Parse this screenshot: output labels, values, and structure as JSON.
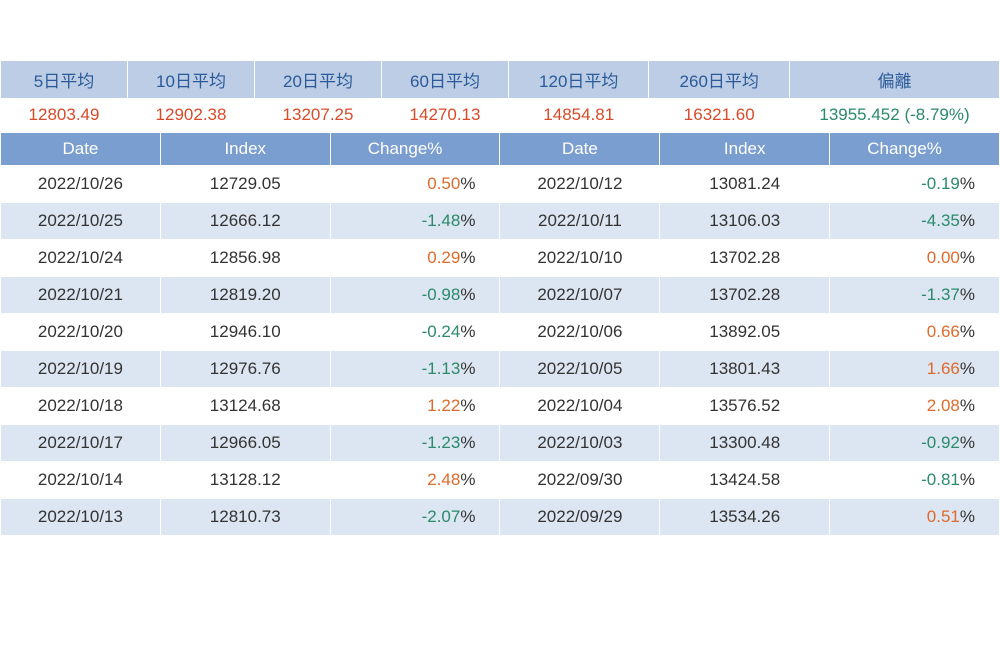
{
  "colors": {
    "avg_header_bg": "#bccde5",
    "avg_header_text": "#2a5a9a",
    "avg_value_text": "#d84a2a",
    "deviation_text": "#2a8a6a",
    "data_header_bg": "#7a9ed0",
    "data_header_text": "#ffffff",
    "row_odd_bg": "#ffffff",
    "row_even_bg": "#dce5f2",
    "positive_text": "#e06a2a",
    "negative_text": "#2a8a6a",
    "cell_text": "#333333",
    "border": "#ffffff"
  },
  "typography": {
    "font_family": "Arial, Microsoft JhengHei",
    "header_fontsize": 17,
    "cell_fontsize": 17
  },
  "averages": {
    "headers": [
      "5日平均",
      "10日平均",
      "20日平均",
      "60日平均",
      "120日平均",
      "260日平均",
      "偏離"
    ],
    "values": [
      "12803.49",
      "12902.38",
      "13207.25",
      "14270.13",
      "14854.81",
      "16321.60"
    ],
    "deviation": "13955.452 (-8.79%)"
  },
  "data_headers": [
    "Date",
    "Index",
    "Change%",
    "Date",
    "Index",
    "Change%"
  ],
  "rows_left": [
    {
      "date": "2022/10/26",
      "index": "12729.05",
      "change": "0.50",
      "dir": "pos"
    },
    {
      "date": "2022/10/25",
      "index": "12666.12",
      "change": "-1.48",
      "dir": "neg"
    },
    {
      "date": "2022/10/24",
      "index": "12856.98",
      "change": "0.29",
      "dir": "pos"
    },
    {
      "date": "2022/10/21",
      "index": "12819.20",
      "change": "-0.98",
      "dir": "neg"
    },
    {
      "date": "2022/10/20",
      "index": "12946.10",
      "change": "-0.24",
      "dir": "neg"
    },
    {
      "date": "2022/10/19",
      "index": "12976.76",
      "change": "-1.13",
      "dir": "neg"
    },
    {
      "date": "2022/10/18",
      "index": "13124.68",
      "change": "1.22",
      "dir": "pos"
    },
    {
      "date": "2022/10/17",
      "index": "12966.05",
      "change": "-1.23",
      "dir": "neg"
    },
    {
      "date": "2022/10/14",
      "index": "13128.12",
      "change": "2.48",
      "dir": "pos"
    },
    {
      "date": "2022/10/13",
      "index": "12810.73",
      "change": "-2.07",
      "dir": "neg"
    }
  ],
  "rows_right": [
    {
      "date": "2022/10/12",
      "index": "13081.24",
      "change": "-0.19",
      "dir": "neg"
    },
    {
      "date": "2022/10/11",
      "index": "13106.03",
      "change": "-4.35",
      "dir": "neg"
    },
    {
      "date": "2022/10/10",
      "index": "13702.28",
      "change": "0.00",
      "dir": "zero"
    },
    {
      "date": "2022/10/07",
      "index": "13702.28",
      "change": "-1.37",
      "dir": "neg"
    },
    {
      "date": "2022/10/06",
      "index": "13892.05",
      "change": "0.66",
      "dir": "pos"
    },
    {
      "date": "2022/10/05",
      "index": "13801.43",
      "change": "1.66",
      "dir": "pos"
    },
    {
      "date": "2022/10/04",
      "index": "13576.52",
      "change": "2.08",
      "dir": "pos"
    },
    {
      "date": "2022/10/03",
      "index": "13300.48",
      "change": "-0.92",
      "dir": "neg"
    },
    {
      "date": "2022/09/30",
      "index": "13424.58",
      "change": "-0.81",
      "dir": "neg"
    },
    {
      "date": "2022/09/29",
      "index": "13534.26",
      "change": "0.51",
      "dir": "pos"
    }
  ]
}
